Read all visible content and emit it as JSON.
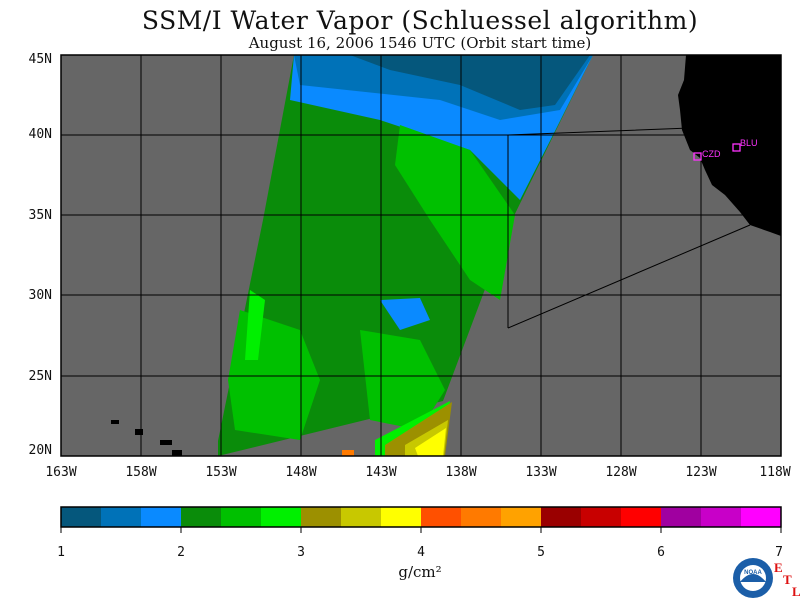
{
  "title": "SSM/I Water Vapor (Schluessel algorithm)",
  "subtitle": "August 16, 2006  1546 UTC  (Orbit start time)",
  "map": {
    "lat_labels": [
      "45N",
      "40N",
      "35N",
      "30N",
      "25N",
      "20N"
    ],
    "lon_labels": [
      "163W",
      "158W",
      "153W",
      "148W",
      "143W",
      "138W",
      "133W",
      "128W",
      "123W",
      "118W"
    ],
    "lat_range": [
      20,
      45
    ],
    "lon_range": [
      -163,
      -118
    ],
    "background_color": "#666666",
    "land_color": "#000000",
    "stations": [
      {
        "id": "CZD",
        "lat": 38.6,
        "lon": -123.2
      },
      {
        "id": "BLU",
        "lat": 39.3,
        "lon": -120.7
      }
    ],
    "station_color": "#ff33ff"
  },
  "colorbar": {
    "unit": "g/cm²",
    "ticks": [
      "1",
      "2",
      "3",
      "4",
      "5",
      "6",
      "7"
    ],
    "min": 1,
    "max": 7,
    "colors": [
      "#05577c",
      "#0072b8",
      "#0a8aff",
      "#0a8c0a",
      "#00c000",
      "#00f000",
      "#9c9000",
      "#c8c800",
      "#ffff00",
      "#ff5000",
      "#ff7a00",
      "#ffa200",
      "#9a0000",
      "#c80000",
      "#ff0000",
      "#a000a0",
      "#c800c8",
      "#ff00ff"
    ]
  },
  "logo": {
    "text": "NOAA",
    "etl_letters": [
      "E",
      "T",
      "L"
    ]
  }
}
